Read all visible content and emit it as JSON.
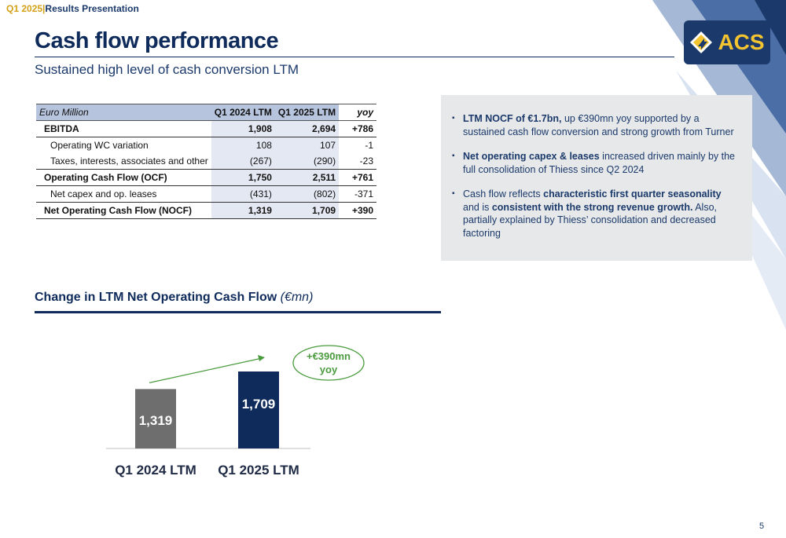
{
  "header": {
    "quarter": "Q1 2025",
    "separator": "|",
    "presentation": "Results Presentation",
    "title": "Cash flow performance",
    "subtitle": "Sustained high level of cash conversion LTM",
    "logo_text": "ACS"
  },
  "table": {
    "header": {
      "label": "Euro Million",
      "col1": "Q1 2024 LTM",
      "col2": "Q1 2025 LTM",
      "col3": "yoy"
    },
    "rows": [
      {
        "label": "EBITDA",
        "v1": "1,908",
        "v2": "2,694",
        "yoy": "+786"
      },
      {
        "label": "Operating WC variation",
        "v1": "108",
        "v2": "107",
        "yoy": "-1"
      },
      {
        "label": "Taxes, interests, associates and other",
        "v1": "(267)",
        "v2": "(290)",
        "yoy": "-23"
      },
      {
        "label": "Operating Cash Flow (OCF)",
        "v1": "1,750",
        "v2": "2,511",
        "yoy": "+761"
      },
      {
        "label": "Net capex and op. leases",
        "v1": "(431)",
        "v2": "(802)",
        "yoy": "-371"
      },
      {
        "label": "Net Operating Cash Flow (NOCF)",
        "v1": "1,319",
        "v2": "1,709",
        "yoy": "+390"
      }
    ]
  },
  "notes": {
    "b1_bold": "LTM NOCF of €1.7bn,",
    "b1_rest": " up €390mn yoy supported by a sustained cash flow conversion and strong growth from Turner",
    "b2_bold": "Net operating capex & leases",
    "b2_rest": " increased driven mainly by the full consolidation of Thiess since Q2 2024",
    "b3_a": "Cash flow reflects ",
    "b3_bold1": "characteristic first quarter seasonality",
    "b3_b": " and is ",
    "b3_bold2": "consistent with the strong revenue growth.",
    "b3_c": " Also, partially explained by Thiess’ consolidation and decreased factoring"
  },
  "chart_section": {
    "title": "Change in LTM Net Operating Cash Flow ",
    "title_unit": "(€mn)"
  },
  "chart_data": {
    "type": "bar",
    "categories": [
      "Q1 2024 LTM",
      "Q1 2025 LTM"
    ],
    "values": [
      1319,
      1709
    ],
    "labels": [
      "1,319",
      "1,709"
    ],
    "colors": [
      "#6e6e6e",
      "#0f2b5b"
    ],
    "annotation_line1": "+€390mn",
    "annotation_line2": "yoy",
    "annotation_color": "#4a9b3e"
  },
  "footer": {
    "page": "5"
  }
}
